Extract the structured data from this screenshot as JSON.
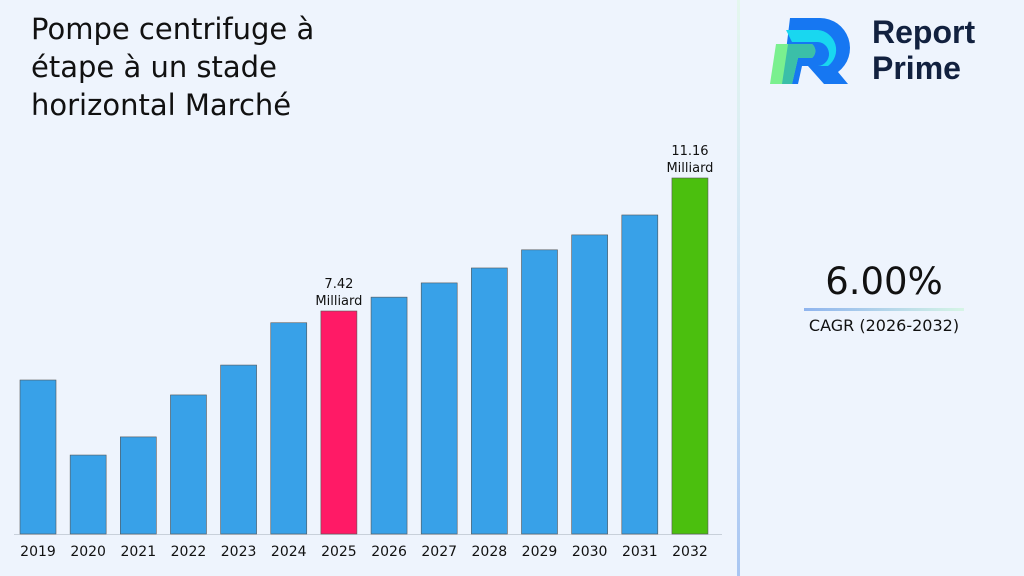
{
  "title": "Pompe centrifuge à étape à un stade horizontal Marché",
  "logo": {
    "line1": "Report",
    "line2": "Prime"
  },
  "cagr": {
    "value": "6.00%",
    "label": "CAGR (2026-2032)"
  },
  "colors": {
    "default_bar": "#38a1e8",
    "highlight_2025": "#ff1a66",
    "highlight_2032": "#4bbf0e"
  },
  "chart_data": {
    "type": "bar",
    "title": "Pompe centrifuge à étape à un stade horizontal Marché",
    "xlabel": "",
    "ylabel": "",
    "categories": [
      "2019",
      "2020",
      "2021",
      "2022",
      "2023",
      "2024",
      "2025",
      "2026",
      "2027",
      "2028",
      "2029",
      "2030",
      "2031",
      "2032"
    ],
    "values": [
      5.48,
      3.37,
      3.88,
      5.06,
      5.9,
      7.09,
      7.42,
      7.81,
      8.21,
      8.63,
      9.14,
      9.56,
      10.12,
      11.16
    ],
    "data_labels": [
      {
        "category": "2025",
        "value": "7.42",
        "unit": "Milliard"
      },
      {
        "category": "2032",
        "value": "11.16",
        "unit": "Milliard"
      }
    ],
    "ylim": [
      1.15,
      11.16
    ],
    "grid": false,
    "legend": "none"
  }
}
